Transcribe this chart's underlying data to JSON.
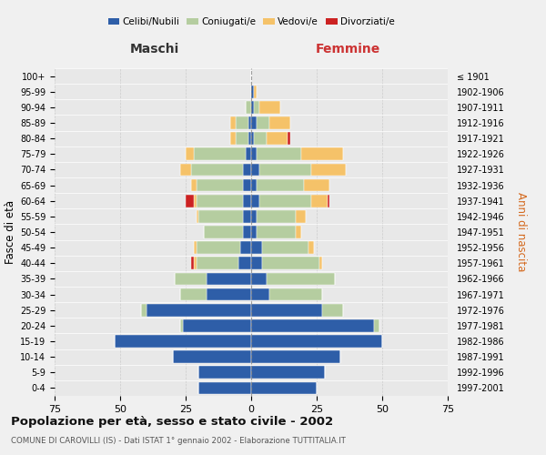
{
  "age_groups": [
    "0-4",
    "5-9",
    "10-14",
    "15-19",
    "20-24",
    "25-29",
    "30-34",
    "35-39",
    "40-44",
    "45-49",
    "50-54",
    "55-59",
    "60-64",
    "65-69",
    "70-74",
    "75-79",
    "80-84",
    "85-89",
    "90-94",
    "95-99",
    "100+"
  ],
  "birth_years": [
    "1997-2001",
    "1992-1996",
    "1987-1991",
    "1982-1986",
    "1977-1981",
    "1972-1976",
    "1967-1971",
    "1962-1966",
    "1957-1961",
    "1952-1956",
    "1947-1951",
    "1942-1946",
    "1937-1941",
    "1932-1936",
    "1927-1931",
    "1922-1926",
    "1917-1921",
    "1912-1916",
    "1907-1911",
    "1902-1906",
    "≤ 1901"
  ],
  "males": {
    "celibe": [
      20,
      20,
      30,
      52,
      26,
      40,
      17,
      17,
      5,
      4,
      3,
      3,
      3,
      3,
      3,
      2,
      1,
      1,
      0,
      0,
      0
    ],
    "coniugato": [
      0,
      0,
      0,
      0,
      1,
      2,
      10,
      12,
      16,
      17,
      15,
      17,
      18,
      18,
      20,
      20,
      5,
      5,
      2,
      0,
      0
    ],
    "vedovo": [
      0,
      0,
      0,
      0,
      0,
      0,
      0,
      0,
      1,
      1,
      0,
      1,
      1,
      2,
      4,
      3,
      2,
      2,
      0,
      0,
      0
    ],
    "divorziato": [
      0,
      0,
      0,
      0,
      0,
      0,
      0,
      0,
      1,
      0,
      0,
      0,
      3,
      0,
      0,
      0,
      0,
      0,
      0,
      0,
      0
    ]
  },
  "females": {
    "nubile": [
      25,
      28,
      34,
      50,
      47,
      27,
      7,
      6,
      4,
      4,
      2,
      2,
      3,
      2,
      3,
      2,
      1,
      2,
      1,
      1,
      0
    ],
    "coniugata": [
      0,
      0,
      0,
      0,
      2,
      8,
      20,
      26,
      22,
      18,
      15,
      15,
      20,
      18,
      20,
      17,
      5,
      5,
      2,
      0,
      0
    ],
    "vedova": [
      0,
      0,
      0,
      0,
      0,
      0,
      0,
      0,
      1,
      2,
      2,
      4,
      6,
      10,
      13,
      16,
      8,
      8,
      8,
      1,
      0
    ],
    "divorziata": [
      0,
      0,
      0,
      0,
      0,
      0,
      0,
      0,
      0,
      0,
      0,
      0,
      1,
      0,
      0,
      0,
      1,
      0,
      0,
      0,
      0
    ]
  },
  "colors": {
    "celibe": "#2E5EA8",
    "coniugato": "#B5CDA0",
    "vedovo": "#F5C269",
    "divorziato": "#CC2222"
  },
  "legend_labels": [
    "Celibi/Nubili",
    "Coniugati/e",
    "Vedovi/e",
    "Divorziati/e"
  ],
  "title": "Popolazione per età, sesso e stato civile - 2002",
  "subtitle": "COMUNE DI CAROVILLI (IS) - Dati ISTAT 1° gennaio 2002 - Elaborazione TUTTITALIA.IT",
  "xlabel_left": "Maschi",
  "xlabel_right": "Femmine",
  "ylabel_left": "Fasce di età",
  "ylabel_right": "Anni di nascita",
  "xlim": 75,
  "bg_color": "#f0f0f0",
  "plot_bg": "#e8e8e8"
}
